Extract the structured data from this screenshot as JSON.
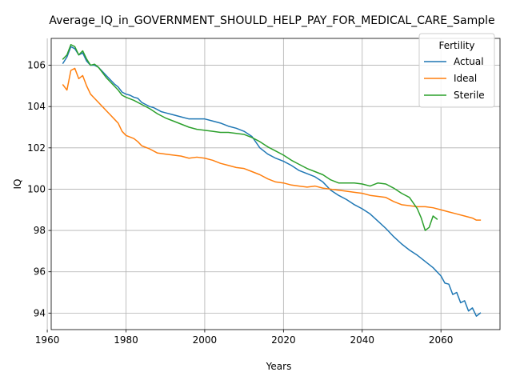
{
  "chart_data": {
    "type": "line",
    "title": "Average_IQ_in_GOVERNMENT_SHOULD_HELP_PAY_FOR_MEDICAL_CARE_Sample",
    "xlabel": "Years",
    "ylabel": "IQ",
    "xlim": [
      1961,
      2075
    ],
    "ylim": [
      93.2,
      107.3
    ],
    "xticks": [
      1960,
      1980,
      2000,
      2020,
      2040,
      2060
    ],
    "yticks": [
      94,
      96,
      98,
      100,
      102,
      104,
      106
    ],
    "grid": true,
    "legend": {
      "title": "Fertility",
      "placement": "top-right"
    },
    "series": [
      {
        "name": "Actual",
        "color": "#1f77b4",
        "points": [
          [
            1964,
            106.1
          ],
          [
            1965,
            106.4
          ],
          [
            1966,
            106.9
          ],
          [
            1967,
            106.8
          ],
          [
            1968,
            106.5
          ],
          [
            1969,
            106.6
          ],
          [
            1970,
            106.2
          ],
          [
            1971,
            106.0
          ],
          [
            1972,
            106.0
          ],
          [
            1973,
            105.9
          ],
          [
            1974,
            105.7
          ],
          [
            1975,
            105.5
          ],
          [
            1976,
            105.3
          ],
          [
            1977,
            105.1
          ],
          [
            1978,
            104.95
          ],
          [
            1979,
            104.7
          ],
          [
            1980,
            104.6
          ],
          [
            1981,
            104.55
          ],
          [
            1982,
            104.45
          ],
          [
            1983,
            104.4
          ],
          [
            1984,
            104.2
          ],
          [
            1985,
            104.1
          ],
          [
            1986,
            104.0
          ],
          [
            1987,
            103.95
          ],
          [
            1988,
            103.85
          ],
          [
            1989,
            103.75
          ],
          [
            1990,
            103.7
          ],
          [
            1992,
            103.6
          ],
          [
            1994,
            103.5
          ],
          [
            1996,
            103.4
          ],
          [
            1998,
            103.4
          ],
          [
            2000,
            103.4
          ],
          [
            2002,
            103.3
          ],
          [
            2004,
            103.2
          ],
          [
            2006,
            103.05
          ],
          [
            2008,
            102.95
          ],
          [
            2010,
            102.8
          ],
          [
            2012,
            102.55
          ],
          [
            2014,
            102.0
          ],
          [
            2016,
            101.7
          ],
          [
            2018,
            101.5
          ],
          [
            2020,
            101.35
          ],
          [
            2022,
            101.15
          ],
          [
            2024,
            100.9
          ],
          [
            2026,
            100.75
          ],
          [
            2028,
            100.6
          ],
          [
            2030,
            100.35
          ],
          [
            2032,
            99.95
          ],
          [
            2034,
            99.7
          ],
          [
            2036,
            99.5
          ],
          [
            2038,
            99.25
          ],
          [
            2040,
            99.05
          ],
          [
            2042,
            98.8
          ],
          [
            2044,
            98.45
          ],
          [
            2046,
            98.1
          ],
          [
            2048,
            97.7
          ],
          [
            2050,
            97.35
          ],
          [
            2052,
            97.05
          ],
          [
            2054,
            96.8
          ],
          [
            2056,
            96.5
          ],
          [
            2058,
            96.2
          ],
          [
            2059,
            96.0
          ],
          [
            2060,
            95.8
          ],
          [
            2061,
            95.45
          ],
          [
            2062,
            95.4
          ],
          [
            2063,
            94.9
          ],
          [
            2064,
            95.0
          ],
          [
            2065,
            94.5
          ],
          [
            2066,
            94.6
          ],
          [
            2067,
            94.1
          ],
          [
            2068,
            94.25
          ],
          [
            2069,
            93.85
          ],
          [
            2070,
            94.0
          ]
        ]
      },
      {
        "name": "Ideal",
        "color": "#ff7f0e",
        "points": [
          [
            1964,
            105.05
          ],
          [
            1965,
            104.8
          ],
          [
            1966,
            105.75
          ],
          [
            1967,
            105.85
          ],
          [
            1968,
            105.35
          ],
          [
            1969,
            105.5
          ],
          [
            1970,
            105.0
          ],
          [
            1971,
            104.6
          ],
          [
            1972,
            104.4
          ],
          [
            1973,
            104.2
          ],
          [
            1974,
            104.0
          ],
          [
            1975,
            103.8
          ],
          [
            1976,
            103.6
          ],
          [
            1977,
            103.4
          ],
          [
            1978,
            103.2
          ],
          [
            1979,
            102.8
          ],
          [
            1980,
            102.6
          ],
          [
            1982,
            102.45
          ],
          [
            1983,
            102.3
          ],
          [
            1984,
            102.1
          ],
          [
            1986,
            101.95
          ],
          [
            1988,
            101.75
          ],
          [
            1990,
            101.7
          ],
          [
            1992,
            101.65
          ],
          [
            1994,
            101.6
          ],
          [
            1996,
            101.5
          ],
          [
            1998,
            101.55
          ],
          [
            2000,
            101.5
          ],
          [
            2002,
            101.4
          ],
          [
            2004,
            101.25
          ],
          [
            2006,
            101.15
          ],
          [
            2008,
            101.05
          ],
          [
            2010,
            101.0
          ],
          [
            2012,
            100.85
          ],
          [
            2014,
            100.7
          ],
          [
            2016,
            100.5
          ],
          [
            2018,
            100.35
          ],
          [
            2020,
            100.3
          ],
          [
            2022,
            100.2
          ],
          [
            2024,
            100.15
          ],
          [
            2026,
            100.1
          ],
          [
            2028,
            100.15
          ],
          [
            2030,
            100.05
          ],
          [
            2032,
            100.0
          ],
          [
            2034,
            99.95
          ],
          [
            2036,
            99.9
          ],
          [
            2038,
            99.85
          ],
          [
            2040,
            99.8
          ],
          [
            2042,
            99.7
          ],
          [
            2044,
            99.65
          ],
          [
            2046,
            99.6
          ],
          [
            2048,
            99.4
          ],
          [
            2050,
            99.25
          ],
          [
            2052,
            99.2
          ],
          [
            2054,
            99.15
          ],
          [
            2056,
            99.15
          ],
          [
            2058,
            99.1
          ],
          [
            2060,
            99.0
          ],
          [
            2062,
            98.9
          ],
          [
            2064,
            98.8
          ],
          [
            2066,
            98.7
          ],
          [
            2068,
            98.6
          ],
          [
            2069,
            98.5
          ],
          [
            2070,
            98.5
          ]
        ]
      },
      {
        "name": "Sterile",
        "color": "#2ca02c",
        "points": [
          [
            1964,
            106.3
          ],
          [
            1965,
            106.5
          ],
          [
            1966,
            107.0
          ],
          [
            1967,
            106.9
          ],
          [
            1968,
            106.5
          ],
          [
            1969,
            106.7
          ],
          [
            1970,
            106.3
          ],
          [
            1971,
            106.0
          ],
          [
            1972,
            106.05
          ],
          [
            1973,
            105.9
          ],
          [
            1974,
            105.65
          ],
          [
            1975,
            105.4
          ],
          [
            1976,
            105.2
          ],
          [
            1977,
            105.0
          ],
          [
            1978,
            104.8
          ],
          [
            1979,
            104.55
          ],
          [
            1980,
            104.45
          ],
          [
            1982,
            104.3
          ],
          [
            1984,
            104.1
          ],
          [
            1986,
            103.9
          ],
          [
            1988,
            103.65
          ],
          [
            1990,
            103.45
          ],
          [
            1992,
            103.3
          ],
          [
            1994,
            103.15
          ],
          [
            1996,
            103.0
          ],
          [
            1998,
            102.9
          ],
          [
            2000,
            102.85
          ],
          [
            2002,
            102.8
          ],
          [
            2004,
            102.75
          ],
          [
            2006,
            102.75
          ],
          [
            2008,
            102.7
          ],
          [
            2010,
            102.65
          ],
          [
            2012,
            102.5
          ],
          [
            2014,
            102.3
          ],
          [
            2016,
            102.05
          ],
          [
            2018,
            101.85
          ],
          [
            2020,
            101.65
          ],
          [
            2022,
            101.4
          ],
          [
            2024,
            101.2
          ],
          [
            2026,
            101.0
          ],
          [
            2028,
            100.85
          ],
          [
            2030,
            100.7
          ],
          [
            2032,
            100.45
          ],
          [
            2034,
            100.3
          ],
          [
            2036,
            100.3
          ],
          [
            2038,
            100.3
          ],
          [
            2040,
            100.25
          ],
          [
            2042,
            100.15
          ],
          [
            2044,
            100.3
          ],
          [
            2046,
            100.25
          ],
          [
            2048,
            100.05
          ],
          [
            2050,
            99.8
          ],
          [
            2052,
            99.6
          ],
          [
            2054,
            99.05
          ],
          [
            2055,
            98.6
          ],
          [
            2056,
            98.0
          ],
          [
            2057,
            98.15
          ],
          [
            2058,
            98.7
          ],
          [
            2059,
            98.55
          ]
        ]
      }
    ]
  }
}
